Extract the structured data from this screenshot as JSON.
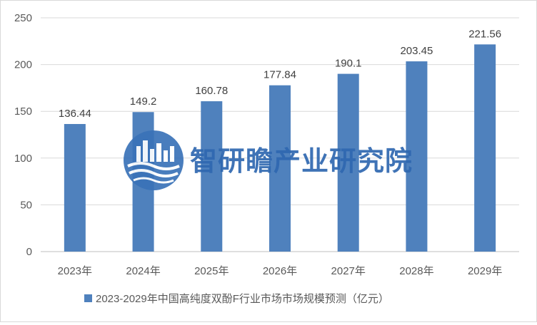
{
  "chart_data": {
    "type": "bar",
    "categories": [
      "2023年",
      "2024年",
      "2025年",
      "2026年",
      "2027年",
      "2028年",
      "2029年"
    ],
    "series": [
      {
        "name": "2023-2029年中国高纯度双酚F行业市场市场规模预测（亿元）",
        "values": [
          136.44,
          149.2,
          160.78,
          177.84,
          190.1,
          203.45,
          221.56
        ],
        "value_labels": [
          "136.44",
          "149.2",
          "160.78",
          "177.84",
          "190.1",
          "203.45",
          "221.56"
        ],
        "color": "#4f81bd"
      }
    ],
    "title": "",
    "xlabel": "",
    "ylabel": "",
    "ylim": [
      0,
      250
    ],
    "yticks": [
      0,
      50,
      100,
      150,
      200,
      250
    ],
    "grid": true,
    "legend_position": "bottom",
    "colors": {
      "bar": "#4f81bd",
      "grid": "#d9d9d9",
      "axis_text": "#595959"
    }
  },
  "watermark": {
    "text": "智研瞻产业研究院",
    "logo_icon": "city-skyline-waves-logo-icon"
  }
}
